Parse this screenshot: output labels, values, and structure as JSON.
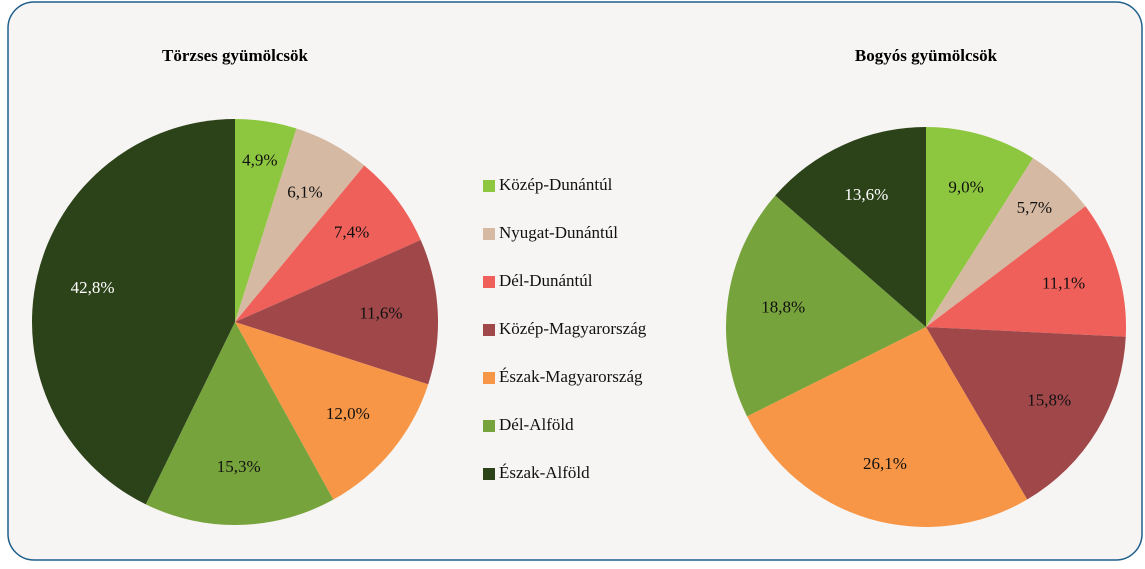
{
  "chart_data": [
    {
      "type": "pie",
      "title": "Törzses gyümölcsök",
      "categories": [
        "Közép-Dunántúl",
        "Nyugat-Dunántúl",
        "Dél-Dunántúl",
        "Közép-Magyarország",
        "Észak-Magyarország",
        "Dél-Alföld",
        "Észak-Alföld"
      ],
      "values": [
        4.9,
        6.1,
        7.4,
        11.6,
        12.0,
        15.3,
        42.8
      ],
      "value_labels": [
        "4,9%",
        "6,1%",
        "7,4%",
        "11,6%",
        "12,0%",
        "15,3%",
        "42,8%"
      ],
      "colors": [
        "#8dc63f",
        "#d5b9a3",
        "#f0605a",
        "#a0474a",
        "#f79646",
        "#77a33c",
        "#2c4219"
      ]
    },
    {
      "type": "pie",
      "title": "Bogyós gyümölcsök",
      "categories": [
        "Közép-Dunántúl",
        "Nyugat-Dunántúl",
        "Dél-Dunántúl",
        "Közép-Magyarország",
        "Észak-Magyarország",
        "Dél-Alföld",
        "Észak-Alföld"
      ],
      "values": [
        9.0,
        5.7,
        11.1,
        15.8,
        26.1,
        18.8,
        13.6
      ],
      "value_labels": [
        "9,0%",
        "5,7%",
        "11,1%",
        "15,8%",
        "26,1%",
        "18,8%",
        "13,6%"
      ],
      "colors": [
        "#8dc63f",
        "#d5b9a3",
        "#f0605a",
        "#a0474a",
        "#f79646",
        "#77a33c",
        "#2c4219"
      ]
    }
  ]
}
